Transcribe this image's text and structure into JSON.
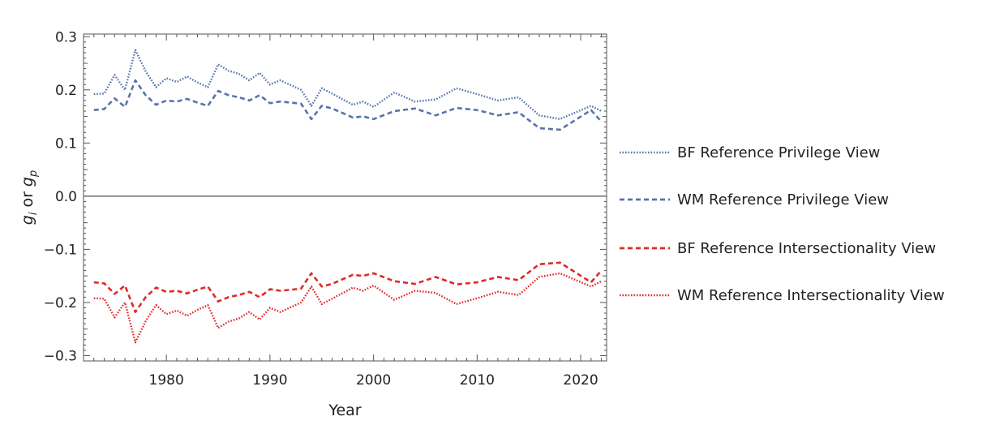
{
  "chart_data": {
    "type": "line",
    "xlabel": "Year",
    "ylabel": "g_i or g_p",
    "xlim": [
      1972,
      2022.5
    ],
    "ylim": [
      -0.31,
      0.305
    ],
    "x_ticks": [
      1980,
      1990,
      2000,
      2010,
      2020
    ],
    "y_ticks": [
      -0.3,
      -0.2,
      -0.1,
      0.0,
      0.1,
      0.2,
      0.3
    ],
    "y_tick_labels": [
      "−0.3",
      "−0.2",
      "−0.1",
      "0.0",
      "0.1",
      "0.2",
      "0.3"
    ],
    "zero_line": true,
    "grid": false,
    "legend_position": "right",
    "x": [
      1973,
      1974,
      1975,
      1976,
      1977,
      1978,
      1979,
      1980,
      1981,
      1982,
      1983,
      1984,
      1985,
      1986,
      1987,
      1988,
      1989,
      1990,
      1991,
      1993,
      1994,
      1995,
      1996,
      1998,
      1999,
      2000,
      2002,
      2004,
      2006,
      2008,
      2010,
      2012,
      2014,
      2016,
      2018,
      2021,
      2022
    ],
    "series": [
      {
        "name": "BF Reference Privilege View",
        "color": "#5874a8",
        "dash": "dotted",
        "values": [
          0.192,
          0.193,
          0.228,
          0.2,
          0.275,
          0.235,
          0.205,
          0.222,
          0.215,
          0.225,
          0.214,
          0.205,
          0.248,
          0.236,
          0.23,
          0.218,
          0.232,
          0.21,
          0.218,
          0.2,
          0.17,
          0.203,
          0.193,
          0.172,
          0.178,
          0.168,
          0.195,
          0.178,
          0.182,
          0.203,
          0.192,
          0.18,
          0.186,
          0.152,
          0.145,
          0.17,
          0.16
        ]
      },
      {
        "name": "WM Reference Privilege View",
        "color": "#5874a8",
        "dash": "dashed",
        "values": [
          0.162,
          0.164,
          0.184,
          0.168,
          0.218,
          0.19,
          0.172,
          0.18,
          0.178,
          0.183,
          0.176,
          0.17,
          0.198,
          0.19,
          0.186,
          0.18,
          0.19,
          0.175,
          0.178,
          0.174,
          0.145,
          0.17,
          0.165,
          0.148,
          0.15,
          0.145,
          0.16,
          0.165,
          0.152,
          0.166,
          0.162,
          0.152,
          0.158,
          0.128,
          0.125,
          0.162,
          0.14
        ]
      },
      {
        "name": "BF Reference Intersectionality View",
        "color": "#e02a27",
        "dash": "dashed",
        "values": [
          -0.162,
          -0.164,
          -0.184,
          -0.168,
          -0.218,
          -0.19,
          -0.172,
          -0.18,
          -0.178,
          -0.183,
          -0.176,
          -0.17,
          -0.198,
          -0.19,
          -0.186,
          -0.18,
          -0.19,
          -0.175,
          -0.178,
          -0.174,
          -0.145,
          -0.17,
          -0.165,
          -0.148,
          -0.15,
          -0.145,
          -0.16,
          -0.165,
          -0.152,
          -0.166,
          -0.162,
          -0.152,
          -0.158,
          -0.128,
          -0.125,
          -0.162,
          -0.14
        ]
      },
      {
        "name": "WM Reference Intersectionality View",
        "color": "#e02a27",
        "dash": "dotted",
        "values": [
          -0.192,
          -0.193,
          -0.228,
          -0.2,
          -0.275,
          -0.235,
          -0.205,
          -0.222,
          -0.215,
          -0.225,
          -0.214,
          -0.205,
          -0.248,
          -0.236,
          -0.23,
          -0.218,
          -0.232,
          -0.21,
          -0.218,
          -0.2,
          -0.17,
          -0.203,
          -0.193,
          -0.172,
          -0.178,
          -0.168,
          -0.195,
          -0.178,
          -0.182,
          -0.203,
          -0.192,
          -0.18,
          -0.186,
          -0.152,
          -0.145,
          -0.17,
          -0.16
        ]
      }
    ]
  }
}
